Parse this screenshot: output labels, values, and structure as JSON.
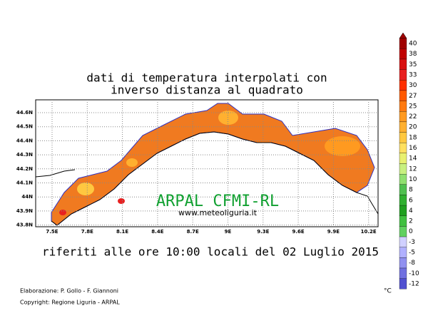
{
  "title": [
    "dati di temperatura interpolati con",
    "inverso distanza al quadrato"
  ],
  "lon_ticks": [
    "7.5E",
    "7.8E",
    "8.1E",
    "8.4E",
    "8.7E",
    "9E",
    "9.3E",
    "9.6E",
    "9.9E",
    "10.2E"
  ],
  "lat_ticks": [
    "44.6N",
    "44.5N",
    "44.4N",
    "44.3N",
    "44.2N",
    "44.1N",
    "44N",
    "43.9N",
    "43.8N"
  ],
  "watermark": {
    "name": "ARPAL CFMI-RL",
    "url": "www.meteoliguria.it"
  },
  "caption": "riferiti alle ore 10:00 locali del 02 Luglio 2015",
  "credits": [
    "Elaborazione: P. Gollo - F. Giannoni",
    "Copyright: Regione Liguria - ARPAL"
  ],
  "colorbar": {
    "unit": "°C",
    "ticks": [
      40,
      38,
      35,
      33,
      30,
      27,
      25,
      22,
      20,
      18,
      16,
      14,
      12,
      10,
      8,
      6,
      4,
      2,
      0,
      -3,
      -5,
      -8,
      -10,
      -12
    ],
    "colors": [
      "#a00000",
      "#c00000",
      "#d81010",
      "#e82020",
      "#ff3000",
      "#ff5a00",
      "#ff7a10",
      "#ff9a20",
      "#ffb030",
      "#ffc840",
      "#ffe060",
      "#e8f070",
      "#c8f080",
      "#90e070",
      "#50c050",
      "#30b030",
      "#20a020",
      "#40c040",
      "#60d060",
      "#d0d0ff",
      "#b0b0ff",
      "#9090f0",
      "#7070e0",
      "#5050d0"
    ]
  }
}
